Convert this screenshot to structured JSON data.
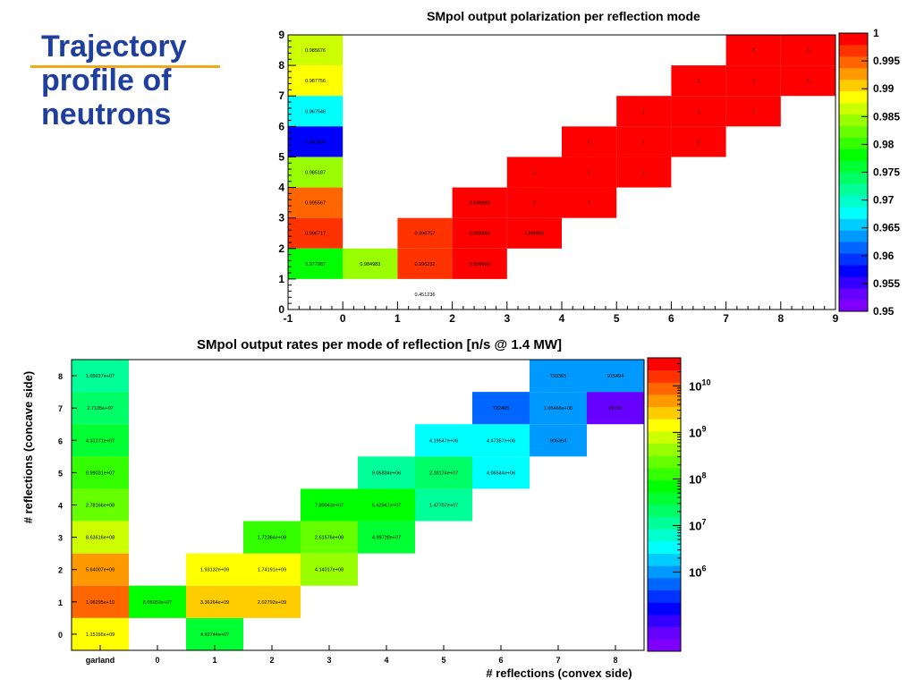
{
  "slide": {
    "title_lines": [
      "Trajectory",
      "profile of",
      "neutrons"
    ]
  },
  "colors": {
    "title": "#1f3f9f",
    "title_underline": "#f2a81c",
    "palette_from_low_to_high": [
      "#7f00ff",
      "#6600ff",
      "#3300ff",
      "#0000ff",
      "#0033ff",
      "#0066ff",
      "#0099ff",
      "#00ccff",
      "#00ffff",
      "#00ffcc",
      "#00ff99",
      "#00ff66",
      "#00ff33",
      "#00ff00",
      "#33ff00",
      "#66ff00",
      "#99ff00",
      "#ccff00",
      "#ffff00",
      "#ffcc00",
      "#ff9900",
      "#ff6600",
      "#ff3300",
      "#ff0000"
    ]
  },
  "chart_data": [
    {
      "type": "heatmap",
      "title": "SMpol output polarization per reflection mode",
      "xlabel": "",
      "ylabel": "",
      "xlim": [
        -1,
        9
      ],
      "ylim": [
        0,
        9
      ],
      "x_ticks": [
        "-1",
        "0",
        "1",
        "2",
        "3",
        "4",
        "5",
        "6",
        "7",
        "8",
        "9"
      ],
      "y_ticks": [
        "0",
        "1",
        "2",
        "3",
        "4",
        "5",
        "6",
        "7",
        "8",
        "9"
      ],
      "zlim": [
        0.95,
        1
      ],
      "z_scale": "linear",
      "colorbar_ticks": [
        "0.95",
        "0.955",
        "0.96",
        "0.965",
        "0.97",
        "0.975",
        "0.98",
        "0.985",
        "0.99",
        "0.995",
        "1"
      ],
      "cells": [
        {
          "x": -1,
          "y": 8,
          "value": 0.985676,
          "label": "0.985676"
        },
        {
          "x": -1,
          "y": 7,
          "value": 0.987756,
          "label": "0.987756"
        },
        {
          "x": -1,
          "y": 6,
          "value": 0.967546,
          "label": "0.967546"
        },
        {
          "x": -1,
          "y": 5,
          "value": 0.957984,
          "label": "0.957984"
        },
        {
          "x": -1,
          "y": 4,
          "value": 0.985187,
          "label": "0.985187"
        },
        {
          "x": -1,
          "y": 3,
          "value": 0.995567,
          "label": "0.995567"
        },
        {
          "x": -1,
          "y": 2,
          "value": 0.996717,
          "label": "0.996717"
        },
        {
          "x": -1,
          "y": 1,
          "value": 0.977987,
          "label": "0.977987"
        },
        {
          "x": 0,
          "y": 1,
          "value": 0.984983,
          "label": "0.984983"
        },
        {
          "x": 1,
          "y": 1,
          "value": 0.996232,
          "label": "0.996232"
        },
        {
          "x": 1,
          "y": 0,
          "value": 0.451236,
          "label": "0.451236"
        },
        {
          "x": 1,
          "y": 2,
          "value": 0.996757,
          "label": "0.996757"
        },
        {
          "x": 2,
          "y": 1,
          "value": 0.999658,
          "label": "0.999658"
        },
        {
          "x": 2,
          "y": 2,
          "value": 0.999946,
          "label": "0.999946"
        },
        {
          "x": 2,
          "y": 3,
          "value": 0.999999,
          "label": "0.999999"
        },
        {
          "x": 3,
          "y": 2,
          "value": 0.999951,
          "label": "0.999951"
        },
        {
          "x": 3,
          "y": 3,
          "value": 1,
          "label": "1"
        },
        {
          "x": 3,
          "y": 4,
          "value": 1,
          "label": "1"
        },
        {
          "x": 4,
          "y": 3,
          "value": 1,
          "label": "1"
        },
        {
          "x": 4,
          "y": 4,
          "value": 1,
          "label": "1"
        },
        {
          "x": 4,
          "y": 5,
          "value": 1,
          "label": "1"
        },
        {
          "x": 5,
          "y": 4,
          "value": 1,
          "label": "1"
        },
        {
          "x": 5,
          "y": 5,
          "value": 1,
          "label": "1"
        },
        {
          "x": 5,
          "y": 6,
          "value": 1,
          "label": "1"
        },
        {
          "x": 6,
          "y": 5,
          "value": 1,
          "label": "1"
        },
        {
          "x": 6,
          "y": 6,
          "value": 1,
          "label": "1"
        },
        {
          "x": 6,
          "y": 7,
          "value": 1,
          "label": "1"
        },
        {
          "x": 7,
          "y": 6,
          "value": 1,
          "label": "1"
        },
        {
          "x": 7,
          "y": 7,
          "value": 1,
          "label": "1"
        },
        {
          "x": 7,
          "y": 8,
          "value": 1,
          "label": "1"
        },
        {
          "x": 8,
          "y": 7,
          "value": 1,
          "label": "1"
        },
        {
          "x": 8,
          "y": 8,
          "value": 1,
          "label": "1"
        }
      ]
    },
    {
      "type": "heatmap",
      "title": "SMpol output rates per mode of reflection [n/s @ 1.4 MW]",
      "xlabel": "# reflections (convex side)",
      "ylabel": "# reflections (concave side)",
      "x_categories": [
        "garland",
        "0",
        "1",
        "2",
        "3",
        "4",
        "5",
        "6",
        "7",
        "8"
      ],
      "y_categories": [
        "0",
        "1",
        "2",
        "3",
        "4",
        "5",
        "6",
        "7",
        "8"
      ],
      "zlim": [
        20000,
        40000000000
      ],
      "z_scale": "log",
      "colorbar_ticks": [
        {
          "base": "10",
          "exp": "10",
          "value": 10000000000
        },
        {
          "base": "10",
          "exp": "9",
          "value": 1000000000
        },
        {
          "base": "10",
          "exp": "8",
          "value": 100000000
        },
        {
          "base": "10",
          "exp": "7",
          "value": 10000000
        },
        {
          "base": "10",
          "exp": "6",
          "value": 1000000
        }
      ],
      "cells": [
        {
          "x": "garland",
          "y": "8",
          "value": 10501700,
          "label": "1.05017e+07"
        },
        {
          "x": "garland",
          "y": "7",
          "value": 27105000,
          "label": "2.7105e+07"
        },
        {
          "x": "garland",
          "y": "6",
          "value": 43127100,
          "label": "4.31271e+07"
        },
        {
          "x": "garland",
          "y": "5",
          "value": 99903100,
          "label": "9.99031e+07"
        },
        {
          "x": "garland",
          "y": "4",
          "value": 278166000,
          "label": "2.78166e+08"
        },
        {
          "x": "garland",
          "y": "3",
          "value": 863616000,
          "label": "8.63616e+08"
        },
        {
          "x": "garland",
          "y": "2",
          "value": 5640070000,
          "label": "5.64007e+09"
        },
        {
          "x": "garland",
          "y": "1",
          "value": 10829500000,
          "label": "1.08295e+10"
        },
        {
          "x": "garland",
          "y": "0",
          "value": 1151650000,
          "label": "1.15165e+09"
        },
        {
          "x": "0",
          "y": "1",
          "value": 60605300,
          "label": "6.06053e+07"
        },
        {
          "x": "1",
          "y": "0",
          "value": 49274400,
          "label": "4.92744e+07"
        },
        {
          "x": "1",
          "y": "1",
          "value": 3362640000,
          "label": "3.36264e+09"
        },
        {
          "x": "1",
          "y": "2",
          "value": 1931320000,
          "label": "1.93132e+09"
        },
        {
          "x": "2",
          "y": "1",
          "value": 2027920000,
          "label": "2.02792e+09"
        },
        {
          "x": "2",
          "y": "2",
          "value": 1741910000,
          "label": "1.74191e+09"
        },
        {
          "x": "2",
          "y": "3",
          "value": 172364000,
          "label": "1.72364e+08"
        },
        {
          "x": "3",
          "y": "2",
          "value": 414017000,
          "label": "4.14017e+08"
        },
        {
          "x": "3",
          "y": "3",
          "value": 261576000,
          "label": "2.61576e+08"
        },
        {
          "x": "3",
          "y": "4",
          "value": 78004300,
          "label": "7.80043e+07"
        },
        {
          "x": "4",
          "y": "3",
          "value": 49972800,
          "label": "4.99728e+07"
        },
        {
          "x": "4",
          "y": "4",
          "value": 54294700,
          "label": "5.42947e+07"
        },
        {
          "x": "4",
          "y": "5",
          "value": 9058340,
          "label": "9.05834e+06"
        },
        {
          "x": "5",
          "y": "4",
          "value": 14770700,
          "label": "1.47707e+07"
        },
        {
          "x": "5",
          "y": "5",
          "value": 21817400,
          "label": "2.18174e+07"
        },
        {
          "x": "5",
          "y": "6",
          "value": 4195470,
          "label": "4.19547e+06"
        },
        {
          "x": "6",
          "y": "5",
          "value": 4065440,
          "label": "4.06544e+06"
        },
        {
          "x": "6",
          "y": "6",
          "value": 4473570,
          "label": "4.47357e+06"
        },
        {
          "x": "6",
          "y": "7",
          "value": 722405,
          "label": "722405"
        },
        {
          "x": "7",
          "y": "6",
          "value": 905364,
          "label": "905364"
        },
        {
          "x": "7",
          "y": "7",
          "value": 1054660,
          "label": "1.05466e+06"
        },
        {
          "x": "7",
          "y": "8",
          "value": 793365,
          "label": "793365"
        },
        {
          "x": "8",
          "y": "7",
          "value": 59735,
          "label": "59735"
        },
        {
          "x": "8",
          "y": "8",
          "value": 915494,
          "label": "915494"
        }
      ]
    }
  ]
}
